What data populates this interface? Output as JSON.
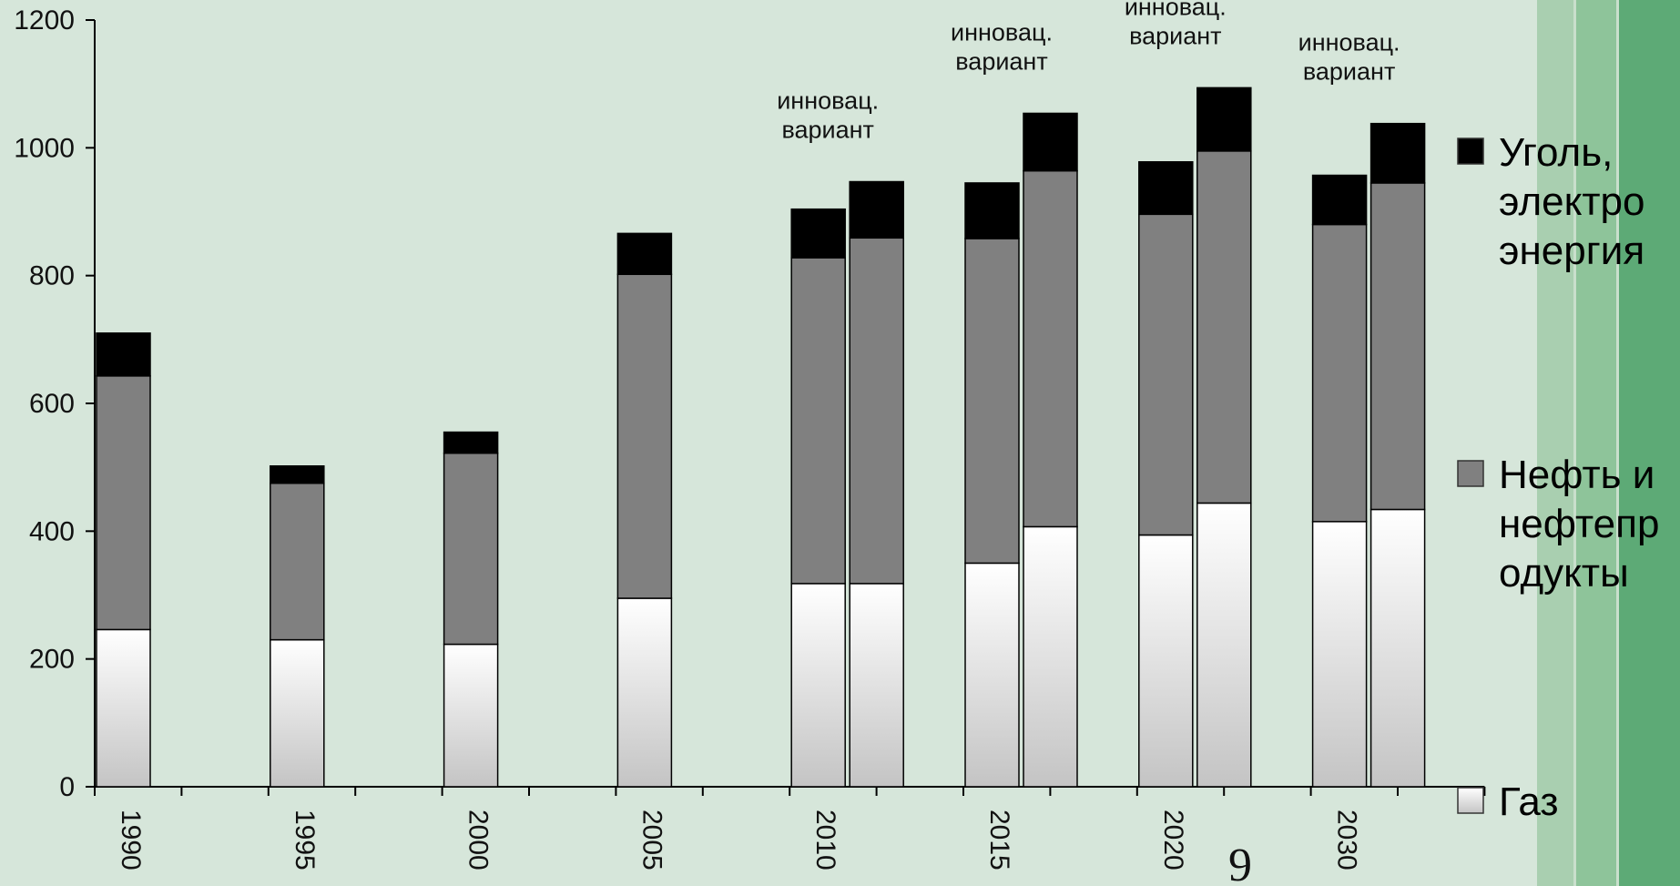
{
  "page_number": "9",
  "chart_data": {
    "type": "bar",
    "stacked": true,
    "ylim": [
      0,
      1200
    ],
    "yticks": [
      0,
      200,
      400,
      600,
      800,
      1000,
      1200
    ],
    "grid": false,
    "legend_position": "right",
    "groups": [
      {
        "label": "1990",
        "bars": [
          {
            "annotation": "",
            "values": [
              246,
              397,
              67
            ]
          }
        ]
      },
      {
        "label": "1995",
        "bars": [
          {
            "annotation": "",
            "values": [
              230,
              245,
              27
            ]
          }
        ]
      },
      {
        "label": "2000",
        "bars": [
          {
            "annotation": "",
            "values": [
              223,
              299,
              33
            ]
          }
        ]
      },
      {
        "label": "2005",
        "bars": [
          {
            "annotation": "",
            "values": [
              295,
              507,
              64
            ]
          }
        ]
      },
      {
        "label": "2010",
        "bars": [
          {
            "annotation": "",
            "values": [
              318,
              510,
              76
            ]
          },
          {
            "annotation_lines": [
              "инновац.",
              "вариант"
            ],
            "values": [
              318,
              541,
              88
            ]
          }
        ]
      },
      {
        "label": "2015",
        "bars": [
          {
            "annotation": "",
            "values": [
              350,
              508,
              87
            ]
          },
          {
            "annotation_lines": [
              "инновац.",
              "вариант"
            ],
            "values": [
              407,
              557,
              90
            ]
          }
        ]
      },
      {
        "label": "2020",
        "bars": [
          {
            "annotation": "",
            "values": [
              394,
              502,
              82
            ]
          },
          {
            "annotation_lines": [
              "инновац.",
              "вариант"
            ],
            "values": [
              444,
              551,
              99
            ]
          }
        ]
      },
      {
        "label": "2030",
        "bars": [
          {
            "annotation": "",
            "values": [
              415,
              465,
              77
            ]
          },
          {
            "annotation_lines": [
              "инновац.",
              "вариант"
            ],
            "values": [
              434,
              511,
              93
            ]
          }
        ]
      }
    ],
    "series": [
      {
        "name": "Газ",
        "legend_lines": [
          "Газ"
        ],
        "color": "#ffffff"
      },
      {
        "name": "Нефть и нефтепродукты",
        "legend_lines": [
          "Нефть и",
          "нефтепр",
          "одукты"
        ],
        "color": "#808080"
      },
      {
        "name": "Уголь, электроэнергия",
        "legend_lines": [
          "Уголь,",
          "электро",
          "энергия"
        ],
        "color": "#000000"
      }
    ],
    "colors": {
      "background": "#d6e6da",
      "stripe_light": "#a9cfb0",
      "stripe_mid": "#8ec49a",
      "stripe_dark": "#5daa76",
      "gas_bottom": "#c4c4c4"
    }
  }
}
